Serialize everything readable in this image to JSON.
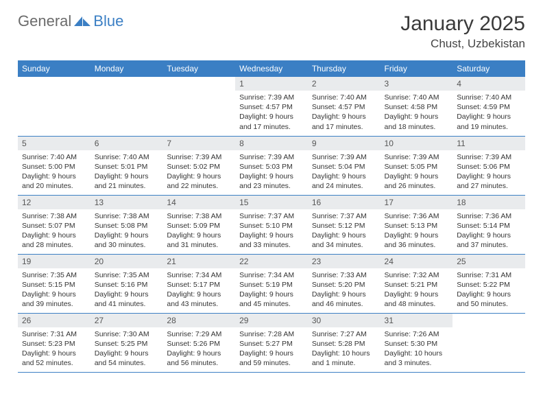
{
  "brand": {
    "part1": "General",
    "part2": "Blue"
  },
  "header": {
    "title": "January 2025",
    "location": "Chust, Uzbekistan"
  },
  "style": {
    "accent": "#3b7fc4",
    "header_bg": "#3b7fc4",
    "header_text": "#ffffff",
    "daynum_bg": "#e9ebed",
    "row_border": "#3b7fc4",
    "body_text": "#333333",
    "title_fontsize": 30,
    "location_fontsize": 17,
    "weekday_fontsize": 12,
    "daynum_fontsize": 12,
    "details_fontsize": 10.5
  },
  "weekdays": [
    "Sunday",
    "Monday",
    "Tuesday",
    "Wednesday",
    "Thursday",
    "Friday",
    "Saturday"
  ],
  "weeks": [
    [
      null,
      null,
      null,
      {
        "n": "1",
        "sunrise": "7:39 AM",
        "sunset": "4:57 PM",
        "daylight": "9 hours and 17 minutes."
      },
      {
        "n": "2",
        "sunrise": "7:40 AM",
        "sunset": "4:57 PM",
        "daylight": "9 hours and 17 minutes."
      },
      {
        "n": "3",
        "sunrise": "7:40 AM",
        "sunset": "4:58 PM",
        "daylight": "9 hours and 18 minutes."
      },
      {
        "n": "4",
        "sunrise": "7:40 AM",
        "sunset": "4:59 PM",
        "daylight": "9 hours and 19 minutes."
      }
    ],
    [
      {
        "n": "5",
        "sunrise": "7:40 AM",
        "sunset": "5:00 PM",
        "daylight": "9 hours and 20 minutes."
      },
      {
        "n": "6",
        "sunrise": "7:40 AM",
        "sunset": "5:01 PM",
        "daylight": "9 hours and 21 minutes."
      },
      {
        "n": "7",
        "sunrise": "7:39 AM",
        "sunset": "5:02 PM",
        "daylight": "9 hours and 22 minutes."
      },
      {
        "n": "8",
        "sunrise": "7:39 AM",
        "sunset": "5:03 PM",
        "daylight": "9 hours and 23 minutes."
      },
      {
        "n": "9",
        "sunrise": "7:39 AM",
        "sunset": "5:04 PM",
        "daylight": "9 hours and 24 minutes."
      },
      {
        "n": "10",
        "sunrise": "7:39 AM",
        "sunset": "5:05 PM",
        "daylight": "9 hours and 26 minutes."
      },
      {
        "n": "11",
        "sunrise": "7:39 AM",
        "sunset": "5:06 PM",
        "daylight": "9 hours and 27 minutes."
      }
    ],
    [
      {
        "n": "12",
        "sunrise": "7:38 AM",
        "sunset": "5:07 PM",
        "daylight": "9 hours and 28 minutes."
      },
      {
        "n": "13",
        "sunrise": "7:38 AM",
        "sunset": "5:08 PM",
        "daylight": "9 hours and 30 minutes."
      },
      {
        "n": "14",
        "sunrise": "7:38 AM",
        "sunset": "5:09 PM",
        "daylight": "9 hours and 31 minutes."
      },
      {
        "n": "15",
        "sunrise": "7:37 AM",
        "sunset": "5:10 PM",
        "daylight": "9 hours and 33 minutes."
      },
      {
        "n": "16",
        "sunrise": "7:37 AM",
        "sunset": "5:12 PM",
        "daylight": "9 hours and 34 minutes."
      },
      {
        "n": "17",
        "sunrise": "7:36 AM",
        "sunset": "5:13 PM",
        "daylight": "9 hours and 36 minutes."
      },
      {
        "n": "18",
        "sunrise": "7:36 AM",
        "sunset": "5:14 PM",
        "daylight": "9 hours and 37 minutes."
      }
    ],
    [
      {
        "n": "19",
        "sunrise": "7:35 AM",
        "sunset": "5:15 PM",
        "daylight": "9 hours and 39 minutes."
      },
      {
        "n": "20",
        "sunrise": "7:35 AM",
        "sunset": "5:16 PM",
        "daylight": "9 hours and 41 minutes."
      },
      {
        "n": "21",
        "sunrise": "7:34 AM",
        "sunset": "5:17 PM",
        "daylight": "9 hours and 43 minutes."
      },
      {
        "n": "22",
        "sunrise": "7:34 AM",
        "sunset": "5:19 PM",
        "daylight": "9 hours and 45 minutes."
      },
      {
        "n": "23",
        "sunrise": "7:33 AM",
        "sunset": "5:20 PM",
        "daylight": "9 hours and 46 minutes."
      },
      {
        "n": "24",
        "sunrise": "7:32 AM",
        "sunset": "5:21 PM",
        "daylight": "9 hours and 48 minutes."
      },
      {
        "n": "25",
        "sunrise": "7:31 AM",
        "sunset": "5:22 PM",
        "daylight": "9 hours and 50 minutes."
      }
    ],
    [
      {
        "n": "26",
        "sunrise": "7:31 AM",
        "sunset": "5:23 PM",
        "daylight": "9 hours and 52 minutes."
      },
      {
        "n": "27",
        "sunrise": "7:30 AM",
        "sunset": "5:25 PM",
        "daylight": "9 hours and 54 minutes."
      },
      {
        "n": "28",
        "sunrise": "7:29 AM",
        "sunset": "5:26 PM",
        "daylight": "9 hours and 56 minutes."
      },
      {
        "n": "29",
        "sunrise": "7:28 AM",
        "sunset": "5:27 PM",
        "daylight": "9 hours and 59 minutes."
      },
      {
        "n": "30",
        "sunrise": "7:27 AM",
        "sunset": "5:28 PM",
        "daylight": "10 hours and 1 minute."
      },
      {
        "n": "31",
        "sunrise": "7:26 AM",
        "sunset": "5:30 PM",
        "daylight": "10 hours and 3 minutes."
      },
      null
    ]
  ],
  "labels": {
    "sunrise": "Sunrise:",
    "sunset": "Sunset:",
    "daylight": "Daylight:"
  }
}
